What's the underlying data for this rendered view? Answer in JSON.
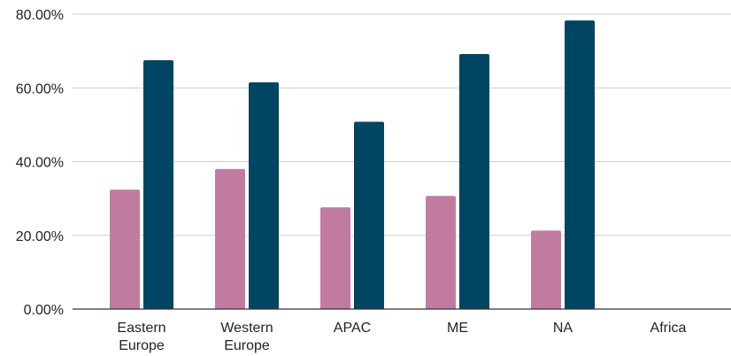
{
  "chart_data": {
    "type": "bar",
    "categories": [
      [
        "Eastern",
        "Europe"
      ],
      [
        "Western",
        "Europe"
      ],
      [
        "APAC"
      ],
      [
        "ME"
      ],
      [
        "NA"
      ],
      [
        "Africa"
      ]
    ],
    "series": [
      {
        "color": "#c27ba0",
        "values": [
          32.4,
          38.0,
          27.6,
          30.7,
          21.3,
          null
        ]
      },
      {
        "color": "#004561",
        "values": [
          67.5,
          61.5,
          50.8,
          69.2,
          78.3,
          null
        ]
      }
    ],
    "y_ticks": [
      "0.00%",
      "20.00%",
      "40.00%",
      "60.00%",
      "80.00%"
    ],
    "ylim": [
      0,
      80
    ],
    "grid": true,
    "gridline_color": "#cccccc",
    "title": "",
    "xlabel": "",
    "ylabel": ""
  }
}
